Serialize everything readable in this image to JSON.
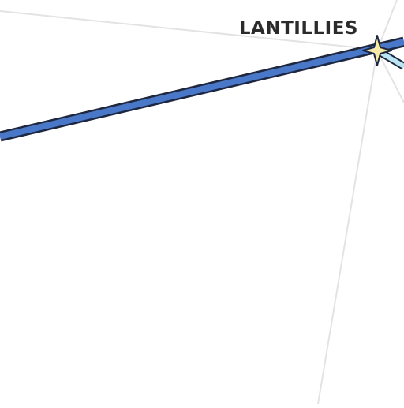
{
  "map": {
    "place": {
      "name": "LANTILLIES",
      "marker": "star-icon"
    },
    "colors": {
      "background": "#ffffff",
      "minor_road": "#e3e3e3",
      "main_line_fill": "#4a78c9",
      "main_line_casing": "#1e2740",
      "branch_line_fill": "#b9e6f2",
      "marker_fill": "#f7eba8",
      "marker_stroke": "#1e2740",
      "label": "#2b2b2b"
    }
  }
}
